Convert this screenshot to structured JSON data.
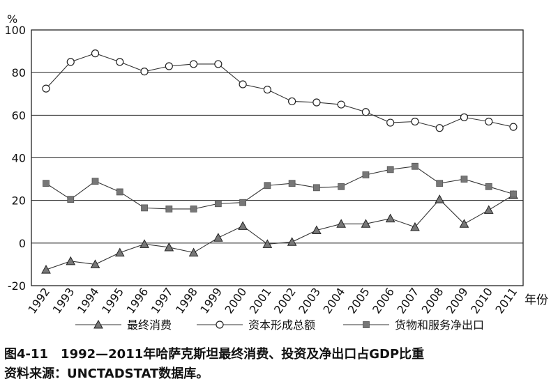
{
  "chart_data": {
    "type": "line",
    "y_unit": "%",
    "x_unit": "年份",
    "x": [
      "1992",
      "1993",
      "1994",
      "1995",
      "1996",
      "1997",
      "1998",
      "1999",
      "2000",
      "2001",
      "2002",
      "2003",
      "2004",
      "2005",
      "2006",
      "2007",
      "2008",
      "2009",
      "2010",
      "2011"
    ],
    "ylim": [
      -20,
      100
    ],
    "yticks": [
      -20,
      0,
      20,
      40,
      60,
      80,
      100
    ],
    "grid": "horizontal",
    "legend_position": "bottom",
    "series": [
      {
        "name": "最终消费",
        "marker": "triangle",
        "color": "#777777",
        "values": [
          -12.5,
          -8.5,
          -10,
          -4.5,
          -0.5,
          -2,
          -4.5,
          2.5,
          8,
          -0.5,
          0.5,
          6,
          9,
          9,
          11.5,
          7.5,
          20.5,
          9,
          15.5,
          22.5
        ]
      },
      {
        "name": "资本形成总额",
        "marker": "circle",
        "color": "#ffffff",
        "values": [
          72.5,
          85,
          89,
          85,
          80.5,
          83,
          84,
          84,
          74.5,
          72,
          66.5,
          66,
          65,
          61.5,
          56.5,
          57,
          54,
          59,
          57,
          54.5
        ]
      },
      {
        "name": "货物和服务净出口",
        "marker": "square",
        "color": "#777777",
        "values": [
          28,
          20.5,
          29,
          24,
          16.5,
          16,
          16,
          18.5,
          19,
          27,
          28,
          26,
          26.5,
          32,
          34.5,
          36,
          28,
          30,
          26.5,
          23
        ]
      }
    ]
  },
  "caption": {
    "title": "图4-11　1992—2011年哈萨克斯坦最终消费、投资及净出口占GDP比重",
    "source": "资料来源：UNCTADSTAT数据库。"
  }
}
